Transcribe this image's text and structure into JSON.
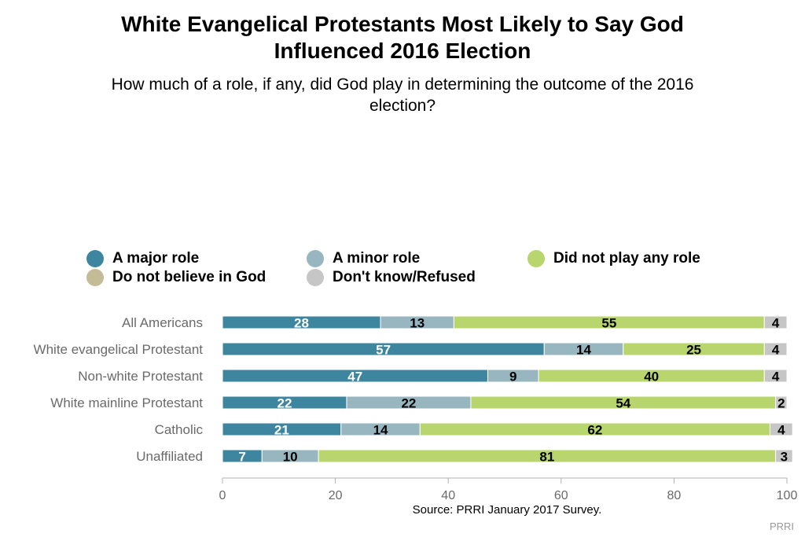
{
  "title_line1": "White Evangelical Protestants Most Likely to Say God",
  "title_line2": "Influenced 2016 Election",
  "subtitle_line1": "How much of a role, if any, did God play in determining the outcome of the 2016",
  "subtitle_line2": "election?",
  "source": "Source: PRRI January 2017 Survey.",
  "brand": "PRRI",
  "colors": {
    "major": "#3e869f",
    "minor": "#98b6bf",
    "none": "#b8d56e",
    "no_god": "#c4bc96",
    "dont_know": "#c6c6c6"
  },
  "chart_data": {
    "type": "bar",
    "orientation": "horizontal",
    "stacked": true,
    "title": "White Evangelical Protestants Most Likely to Say God Influenced 2016 Election",
    "subtitle": "How much of a role, if any, did God play in determining the outcome of the 2016 election?",
    "categories": [
      "All Americans",
      "White evangelical Protestant",
      "Non-white Protestant",
      "White mainline Protestant",
      "Catholic",
      "Unaffiliated"
    ],
    "series": [
      {
        "name": "A major role",
        "color": "#3e869f",
        "label_color": "#ffffff",
        "values": [
          28,
          57,
          47,
          22,
          21,
          7
        ]
      },
      {
        "name": "A minor role",
        "color": "#98b6bf",
        "label_color": "#000000",
        "values": [
          13,
          14,
          9,
          22,
          14,
          10
        ]
      },
      {
        "name": "Did not play any role",
        "color": "#b8d56e",
        "label_color": "#000000",
        "values": [
          55,
          25,
          40,
          54,
          62,
          81
        ]
      },
      {
        "name": "Do not believe in God",
        "color": "#c4bc96",
        "label_color": "#000000",
        "values": [
          0,
          0,
          0,
          0,
          0,
          0
        ]
      },
      {
        "name": "Don't know/Refused",
        "color": "#c6c6c6",
        "label_color": "#000000",
        "values": [
          4,
          4,
          4,
          2,
          4,
          3
        ]
      }
    ],
    "xlim": [
      0,
      100
    ],
    "xticks": [
      0,
      20,
      40,
      60,
      80,
      100
    ],
    "grid": false,
    "legend_position": "top"
  }
}
